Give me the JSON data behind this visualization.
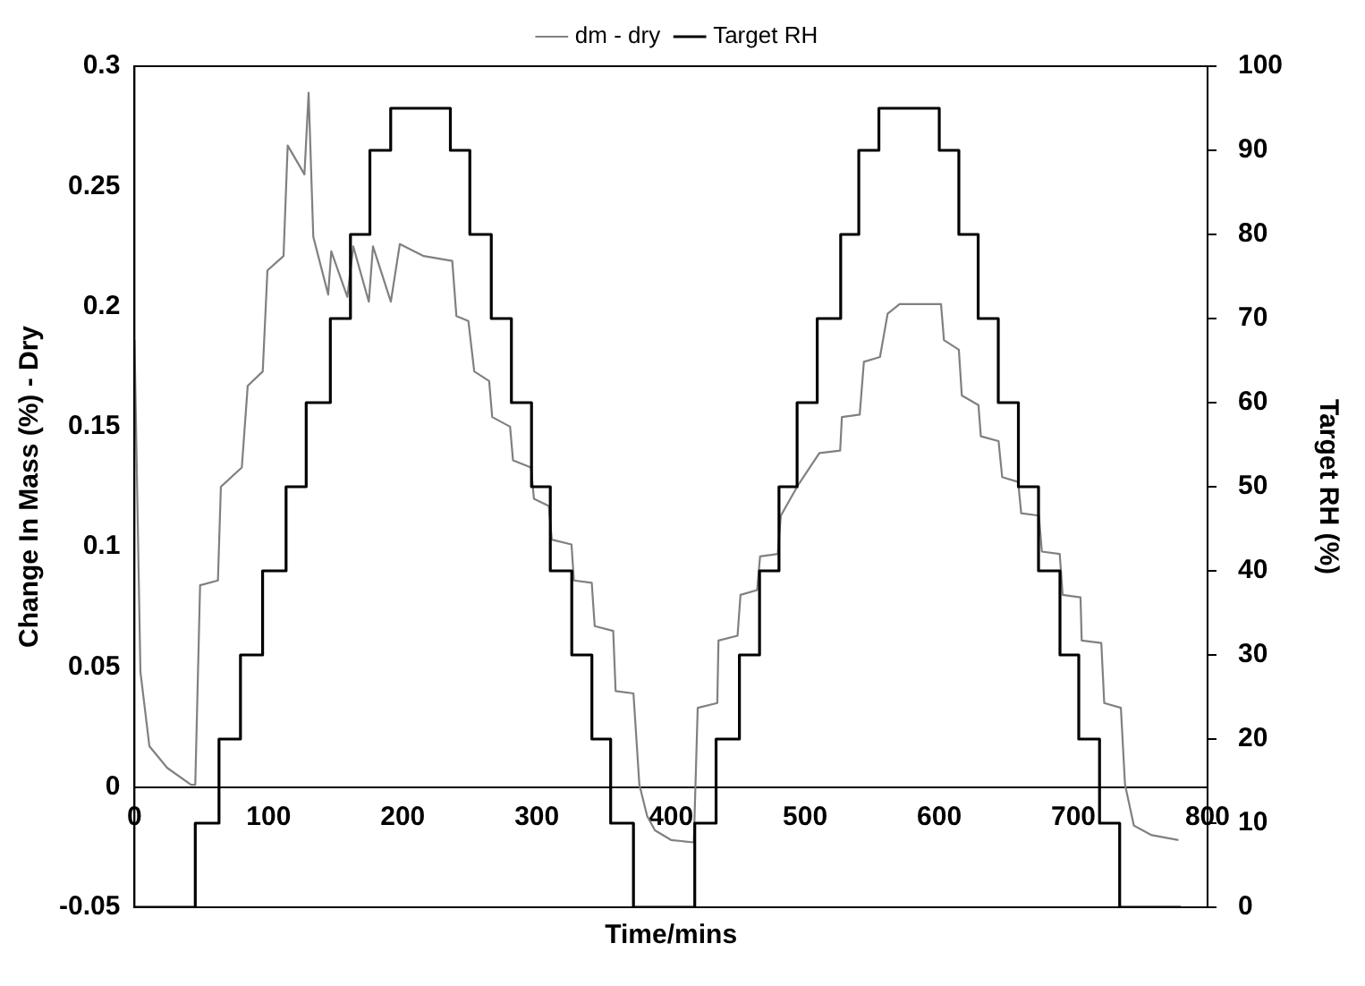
{
  "chart_data": {
    "type": "line",
    "xlabel": "Time/mins",
    "ylabel": "Change In Mass (%) - Dry",
    "y2label": "Target RH (%)",
    "xlim": [
      0,
      800
    ],
    "xticks": [
      0,
      100,
      200,
      300,
      400,
      500,
      600,
      700,
      800
    ],
    "ylim": [
      -0.05,
      0.3
    ],
    "yticks": [
      -0.05,
      0,
      0.05,
      0.1,
      0.15,
      0.2,
      0.25,
      0.3
    ],
    "y2lim": [
      0,
      100
    ],
    "y2ticks": [
      0,
      10,
      20,
      30,
      40,
      50,
      60,
      70,
      80,
      90,
      100
    ],
    "legend": "top",
    "grid": false,
    "marker": "none",
    "series": [
      {
        "name": "dm - dry",
        "type": "line",
        "color": "#808080",
        "x": [
          0,
          4.4,
          11.1,
          24.4,
          42.2,
          45.3,
          48.9,
          62.2,
          64.4,
          80,
          84.4,
          95.6,
          99.1,
          111.1,
          114.2,
          126.7,
          129.8,
          133.3,
          144.4,
          146.7,
          158.7,
          163.1,
          174.7,
          177.8,
          191.1,
          197.8,
          215.6,
          236.9,
          240,
          248.9,
          253.3,
          264.4,
          266.7,
          280,
          282.2,
          295.6,
          297.8,
          308.9,
          311.1,
          325.8,
          327.6,
          340.9,
          343.1,
          356.9,
          358.7,
          372,
          376.4,
          382.2,
          388,
          400,
          417,
          419.9,
          434.5,
          435.4,
          449.6,
          451.8,
          464.2,
          466.4,
          479.6,
          481.9,
          495.1,
          510.6,
          526.1,
          527.4,
          540.7,
          543.8,
          555.8,
          561.5,
          570.4,
          601.3,
          603.5,
          614.6,
          616.8,
          629.2,
          631,
          644.2,
          646.9,
          658.8,
          661.1,
          674.3,
          676.5,
          689.8,
          692,
          705.3,
          706.2,
          720.8,
          723,
          735.4,
          738.5,
          745.1,
          758.4,
          778.3
        ],
        "values": [
          0.186,
          0.048,
          0.017,
          0.008,
          0.001,
          0.001,
          0.084,
          0.086,
          0.125,
          0.133,
          0.167,
          0.173,
          0.215,
          0.221,
          0.267,
          0.255,
          0.289,
          0.229,
          0.205,
          0.223,
          0.204,
          0.225,
          0.202,
          0.225,
          0.202,
          0.226,
          0.221,
          0.219,
          0.196,
          0.194,
          0.173,
          0.169,
          0.154,
          0.15,
          0.136,
          0.133,
          0.12,
          0.117,
          0.103,
          0.101,
          0.086,
          0.085,
          0.067,
          0.065,
          0.04,
          0.039,
          0.001,
          -0.012,
          -0.018,
          -0.022,
          -0.023,
          0.033,
          0.035,
          0.061,
          0.063,
          0.08,
          0.082,
          0.096,
          0.097,
          0.113,
          0.126,
          0.139,
          0.14,
          0.154,
          0.155,
          0.177,
          0.179,
          0.197,
          0.201,
          0.201,
          0.186,
          0.182,
          0.163,
          0.159,
          0.146,
          0.144,
          0.129,
          0.127,
          0.114,
          0.113,
          0.098,
          0.097,
          0.08,
          0.079,
          0.061,
          0.06,
          0.035,
          0.033,
          0.001,
          -0.016,
          -0.02,
          -0.022
        ]
      },
      {
        "name": "Target RH",
        "type": "step",
        "axis": "y2",
        "color": "#000000",
        "x": [
          0,
          45.3,
          63,
          79,
          95.5,
          113,
          128,
          146,
          161,
          175.5,
          191,
          235.5,
          250,
          266,
          281,
          296,
          310,
          326,
          341,
          355,
          372,
          417.7,
          433.6,
          451,
          466,
          480.5,
          494,
          509,
          526.5,
          540,
          555,
          600,
          614.6,
          629,
          644,
          659,
          674,
          690,
          704,
          719.5,
          734.5,
          780
        ],
        "values": [
          0,
          10,
          20,
          30,
          40,
          50,
          60,
          70,
          80,
          90,
          95,
          90,
          80,
          70,
          60,
          50,
          40,
          30,
          20,
          10,
          0,
          10,
          20,
          30,
          40,
          50,
          60,
          70,
          80,
          90,
          95,
          90,
          80,
          70,
          60,
          50,
          40,
          30,
          20,
          10,
          0,
          0
        ]
      }
    ]
  }
}
